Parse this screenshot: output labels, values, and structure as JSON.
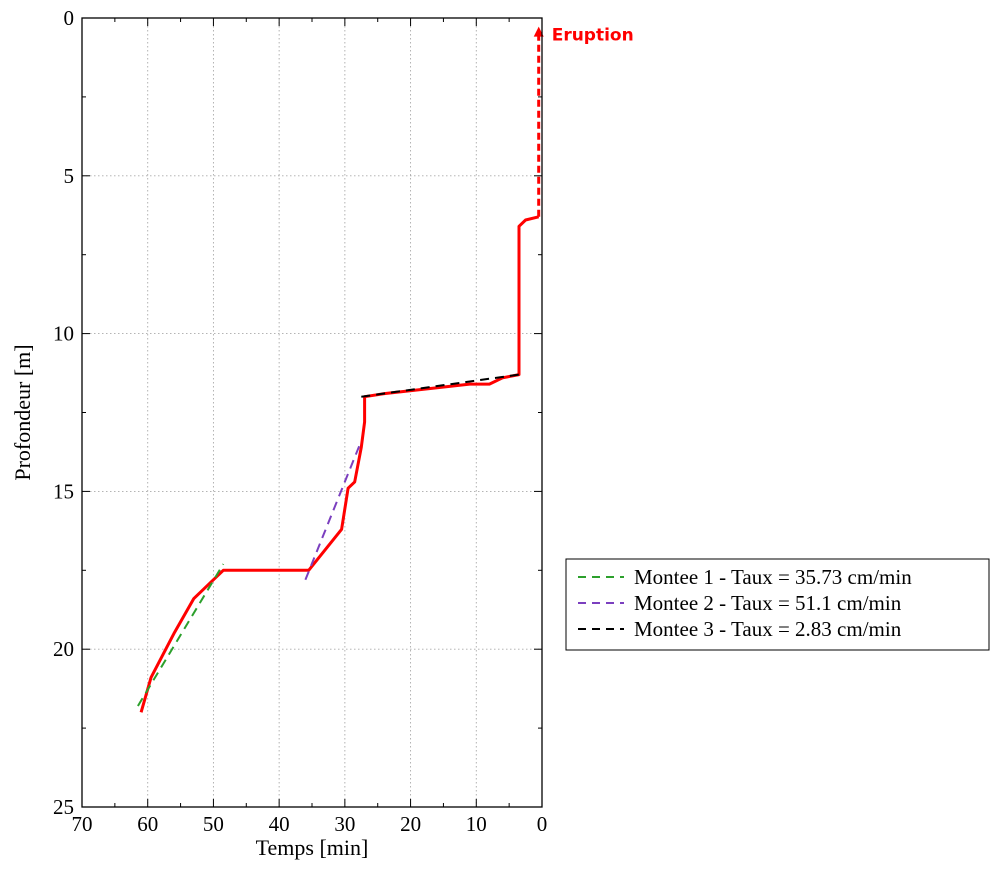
{
  "chart_data": {
    "type": "line",
    "title": "",
    "xlabel": "Temps [min]",
    "ylabel": "Profondeur [m]",
    "xlim": [
      70,
      0
    ],
    "ylim": [
      25,
      0
    ],
    "x_reversed": true,
    "y_reversed": true,
    "xticks": [
      "70",
      "60",
      "50",
      "40",
      "30",
      "20",
      "10",
      "0"
    ],
    "yticks": [
      "0",
      "5",
      "10",
      "15",
      "20",
      "25"
    ],
    "grid": true,
    "legend_placement": "outside-right",
    "series": [
      {
        "color": "#ff0000",
        "style": "solid",
        "points": [
          [
            61,
            22.0
          ],
          [
            59.5,
            20.9
          ],
          [
            56,
            19.5
          ],
          [
            53,
            18.4
          ],
          [
            50.5,
            17.9
          ],
          [
            48.5,
            17.5
          ],
          [
            36,
            17.5
          ],
          [
            35.5,
            17.5
          ],
          [
            30.5,
            16.2
          ],
          [
            29.5,
            14.9
          ],
          [
            28.5,
            14.7
          ],
          [
            27.5,
            13.6
          ],
          [
            27,
            12.8
          ],
          [
            27,
            12.0
          ],
          [
            24,
            11.9
          ],
          [
            11,
            11.6
          ],
          [
            8,
            11.6
          ],
          [
            6,
            11.4
          ],
          [
            3.5,
            11.3
          ],
          [
            3.5,
            6.6
          ],
          [
            2.5,
            6.4
          ],
          [
            0.5,
            6.3
          ]
        ]
      },
      {
        "color": "#ff0000",
        "style": "dashed",
        "points": [
          [
            0.5,
            6.3
          ],
          [
            0.5,
            0.4
          ]
        ]
      },
      {
        "name": "Montee 1 - Taux = 35.73 cm/min",
        "color": "#2ca02c",
        "style": "dashed",
        "points": [
          [
            61.5,
            21.8
          ],
          [
            48.5,
            17.3
          ]
        ]
      },
      {
        "name": "Montee 2 - Taux = 51.1 cm/min",
        "color": "#7b3fbf",
        "style": "dashed",
        "points": [
          [
            36,
            17.8
          ],
          [
            27.5,
            13.4
          ]
        ]
      },
      {
        "name": "Montee 3 - Taux = 2.83 cm/min",
        "color": "#000000",
        "style": "dashed",
        "points": [
          [
            27.5,
            12.0
          ],
          [
            3.5,
            11.3
          ]
        ]
      }
    ],
    "annotations": [
      {
        "text": "Eruption",
        "color": "#ff0000",
        "x": 0.5,
        "y": 0.4
      }
    ],
    "legend": [
      {
        "label": "Montee 1 - Taux = 35.73 cm/min",
        "color": "#2ca02c"
      },
      {
        "label": "Montee 2 - Taux = 51.1 cm/min",
        "color": "#7b3fbf"
      },
      {
        "label": "Montee 3 - Taux = 2.83 cm/min",
        "color": "#000000"
      }
    ]
  }
}
